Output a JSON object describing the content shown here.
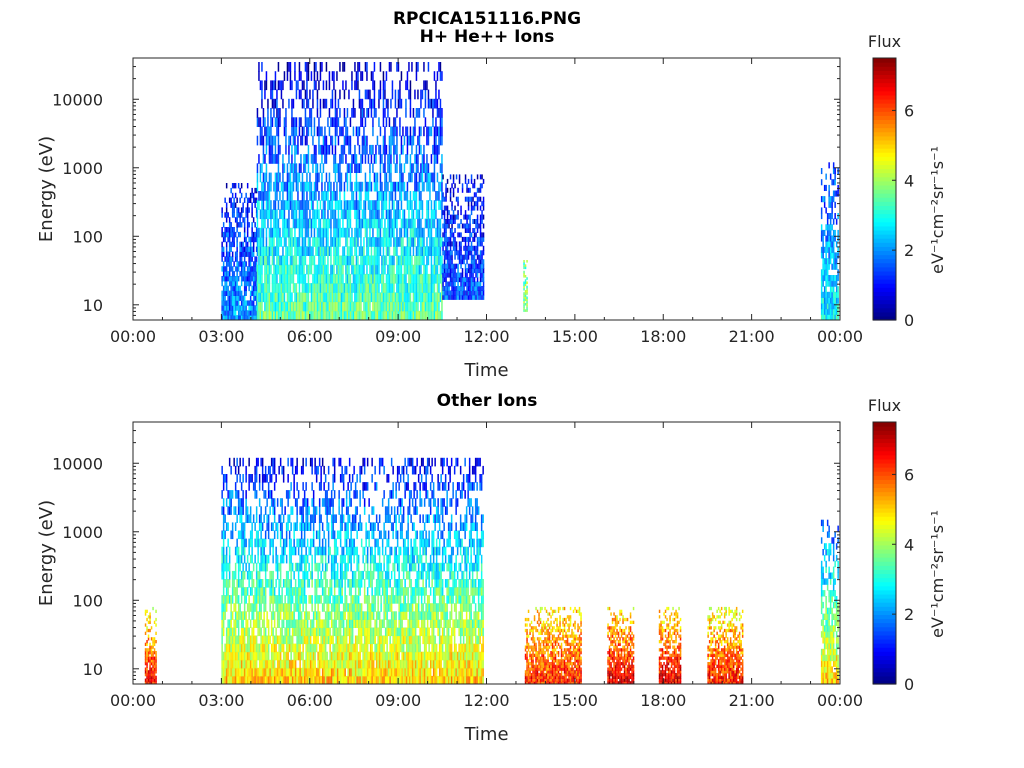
{
  "figure": {
    "title_line1": "RPCICA151116.PNG",
    "title_line2": "H+ He++ Ions"
  },
  "chart_data": [
    {
      "type": "heatmap",
      "title": "H+ He++ Ions",
      "xlabel": "Time",
      "ylabel": "Energy (eV)",
      "x_ticks": [
        "00:00",
        "03:00",
        "06:00",
        "09:00",
        "12:00",
        "15:00",
        "18:00",
        "21:00",
        "00:00"
      ],
      "x_range_hours": [
        0,
        24
      ],
      "y_scale": "log",
      "y_ticks": [
        {
          "value": 10,
          "label": "10"
        },
        {
          "value": 100,
          "label": "100"
        },
        {
          "value": 1000,
          "label": "1000"
        },
        {
          "value": 10000,
          "label": "10000"
        }
      ],
      "ylim": [
        6,
        40000
      ],
      "colorbar": {
        "label_top": "Flux",
        "label_side": "eV⁻¹cm⁻²sr⁻¹s⁻¹",
        "ticks": [
          "0",
          "2",
          "4",
          "6"
        ],
        "range": [
          0,
          7.5
        ],
        "colormap": "jet"
      },
      "regions": [
        {
          "t_start": 3.0,
          "t_end": 4.2,
          "e_min": 6,
          "e_max": 600,
          "flux_low_e": 2.0,
          "flux_high_e": 0.8
        },
        {
          "t_start": 4.2,
          "t_end": 10.5,
          "e_min": 6,
          "e_max": 35000,
          "flux_low_e": 3.5,
          "flux_high_e": 0.5
        },
        {
          "t_start": 10.5,
          "t_end": 11.9,
          "e_min": 12,
          "e_max": 800,
          "flux_low_e": 1.5,
          "flux_high_e": 0.8
        },
        {
          "t_start": 13.25,
          "t_end": 13.4,
          "e_min": 8,
          "e_max": 60,
          "flux_low_e": 3.8,
          "flux_high_e": 3.5
        },
        {
          "t_start": 23.35,
          "t_end": 23.95,
          "e_min": 6,
          "e_max": 1200,
          "flux_low_e": 2.8,
          "flux_high_e": 1.2
        }
      ]
    },
    {
      "type": "heatmap",
      "title": "Other Ions",
      "xlabel": "Time",
      "ylabel": "Energy (eV)",
      "x_ticks": [
        "00:00",
        "03:00",
        "06:00",
        "09:00",
        "12:00",
        "15:00",
        "18:00",
        "21:00",
        "00:00"
      ],
      "x_range_hours": [
        0,
        24
      ],
      "y_scale": "log",
      "y_ticks": [
        {
          "value": 10,
          "label": "10"
        },
        {
          "value": 100,
          "label": "100"
        },
        {
          "value": 1000,
          "label": "1000"
        },
        {
          "value": 10000,
          "label": "10000"
        }
      ],
      "ylim": [
        6,
        40000
      ],
      "colorbar": {
        "label_top": "Flux",
        "label_side": "eV⁻¹cm⁻²sr⁻¹s⁻¹",
        "ticks": [
          "0",
          "2",
          "4",
          "6"
        ],
        "range": [
          0,
          7.5
        ],
        "colormap": "jet"
      },
      "regions": [
        {
          "t_start": 0.4,
          "t_end": 0.8,
          "e_min": 6,
          "e_max": 80,
          "flux_low_e": 6.5,
          "flux_high_e": 4.5
        },
        {
          "t_start": 3.0,
          "t_end": 11.9,
          "e_min": 6,
          "e_max": 12000,
          "flux_low_e": 5.0,
          "flux_high_e": 0.8
        },
        {
          "t_start": 13.3,
          "t_end": 15.2,
          "e_min": 6,
          "e_max": 80,
          "flux_low_e": 6.3,
          "flux_high_e": 4.8
        },
        {
          "t_start": 16.1,
          "t_end": 17.0,
          "e_min": 6,
          "e_max": 80,
          "flux_low_e": 6.8,
          "flux_high_e": 4.8
        },
        {
          "t_start": 17.85,
          "t_end": 18.6,
          "e_min": 6,
          "e_max": 80,
          "flux_low_e": 6.8,
          "flux_high_e": 4.8
        },
        {
          "t_start": 19.5,
          "t_end": 20.7,
          "e_min": 6,
          "e_max": 80,
          "flux_low_e": 6.5,
          "flux_high_e": 4.5
        },
        {
          "t_start": 23.35,
          "t_end": 23.95,
          "e_min": 6,
          "e_max": 1500,
          "flux_low_e": 5.0,
          "flux_high_e": 1.5
        }
      ]
    }
  ]
}
